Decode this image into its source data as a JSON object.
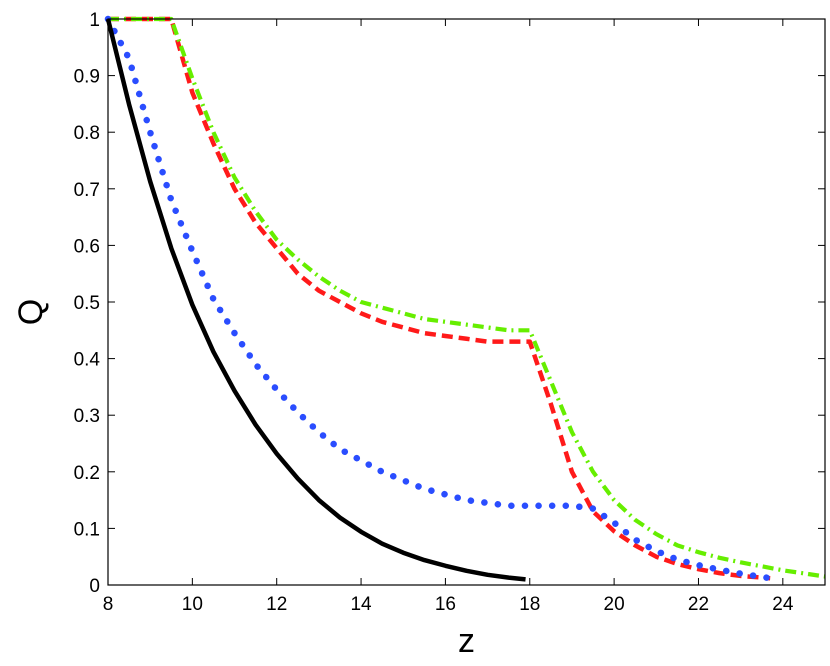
{
  "chart_data": {
    "type": "line",
    "title": "",
    "xlabel": "z",
    "ylabel": "Q",
    "xlim": [
      8,
      25
    ],
    "ylim": [
      0,
      1
    ],
    "xticks": [
      8,
      10,
      12,
      14,
      16,
      18,
      20,
      22,
      24
    ],
    "yticks": [
      0,
      0.1,
      0.2,
      0.3,
      0.4,
      0.5,
      0.6,
      0.7,
      0.8,
      0.9,
      1
    ],
    "xtick_labels": [
      "8",
      "10",
      "12",
      "14",
      "16",
      "18",
      "20",
      "22",
      "24"
    ],
    "ytick_labels": [
      "0",
      "0.1",
      "0.2",
      "0.3",
      "0.4",
      "0.5",
      "0.6",
      "0.7",
      "0.8",
      "0.9",
      "1"
    ],
    "grid": false,
    "legend": "none",
    "series": [
      {
        "style": "solid",
        "color": "#000000",
        "x": [
          8.0,
          8.5,
          9.0,
          9.5,
          10.0,
          10.5,
          11.0,
          11.5,
          12.0,
          12.5,
          13.0,
          13.5,
          14.0,
          14.5,
          15.0,
          15.5,
          16.0,
          16.5,
          17.0,
          17.5,
          17.9
        ],
        "y": [
          1.0,
          0.849,
          0.713,
          0.595,
          0.495,
          0.412,
          0.343,
          0.283,
          0.232,
          0.188,
          0.15,
          0.119,
          0.094,
          0.073,
          0.057,
          0.044,
          0.034,
          0.025,
          0.018,
          0.013,
          0.01
        ]
      },
      {
        "style": "dotted",
        "color": "#2a4dff",
        "x": [
          8.0,
          8.5,
          9.0,
          9.5,
          10.0,
          10.5,
          11.0,
          11.5,
          12.0,
          12.5,
          13.0,
          13.5,
          14.0,
          14.5,
          15.0,
          15.5,
          16.0,
          16.5,
          17.0,
          17.5,
          18.0,
          18.5,
          19.0,
          19.5,
          20.0,
          20.5,
          21.0,
          21.5,
          22.0,
          22.5,
          23.0,
          23.7
        ],
        "y": [
          1.0,
          0.93,
          0.8,
          0.68,
          0.59,
          0.505,
          0.445,
          0.39,
          0.345,
          0.305,
          0.27,
          0.24,
          0.22,
          0.2,
          0.185,
          0.17,
          0.16,
          0.15,
          0.145,
          0.14,
          0.14,
          0.14,
          0.14,
          0.135,
          0.11,
          0.08,
          0.06,
          0.045,
          0.035,
          0.027,
          0.02,
          0.012
        ]
      },
      {
        "style": "dashed",
        "color": "#ff1a1a",
        "x": [
          8.0,
          8.5,
          9.0,
          9.5,
          10.0,
          10.5,
          11.0,
          11.5,
          12.0,
          12.5,
          13.0,
          13.5,
          14.0,
          14.5,
          15.0,
          15.5,
          16.0,
          16.5,
          17.0,
          17.5,
          18.0,
          18.5,
          19.0,
          19.5,
          20.0,
          20.5,
          21.0,
          21.5,
          22.0,
          22.5,
          23.0,
          23.7
        ],
        "y": [
          1.0,
          1.0,
          1.0,
          1.0,
          0.87,
          0.78,
          0.7,
          0.64,
          0.595,
          0.55,
          0.52,
          0.5,
          0.48,
          0.465,
          0.455,
          0.445,
          0.44,
          0.435,
          0.43,
          0.43,
          0.43,
          0.32,
          0.2,
          0.13,
          0.095,
          0.07,
          0.05,
          0.037,
          0.028,
          0.021,
          0.016,
          0.012
        ]
      },
      {
        "style": "dash-dot",
        "color": "#66ee00",
        "x": [
          8.0,
          8.5,
          9.0,
          9.5,
          10.0,
          10.5,
          11.0,
          11.5,
          12.0,
          12.5,
          13.0,
          13.5,
          14.0,
          14.5,
          15.0,
          15.5,
          16.0,
          16.5,
          17.0,
          17.5,
          18.0,
          18.5,
          19.0,
          19.5,
          20.0,
          20.5,
          21.0,
          21.5,
          22.0,
          22.5,
          23.0,
          24.0,
          25.0
        ],
        "y": [
          1.0,
          1.0,
          1.0,
          1.0,
          0.895,
          0.8,
          0.72,
          0.66,
          0.61,
          0.575,
          0.545,
          0.52,
          0.5,
          0.49,
          0.48,
          0.47,
          0.465,
          0.46,
          0.455,
          0.45,
          0.45,
          0.36,
          0.27,
          0.2,
          0.15,
          0.115,
          0.09,
          0.07,
          0.058,
          0.048,
          0.04,
          0.026,
          0.015
        ]
      }
    ]
  }
}
